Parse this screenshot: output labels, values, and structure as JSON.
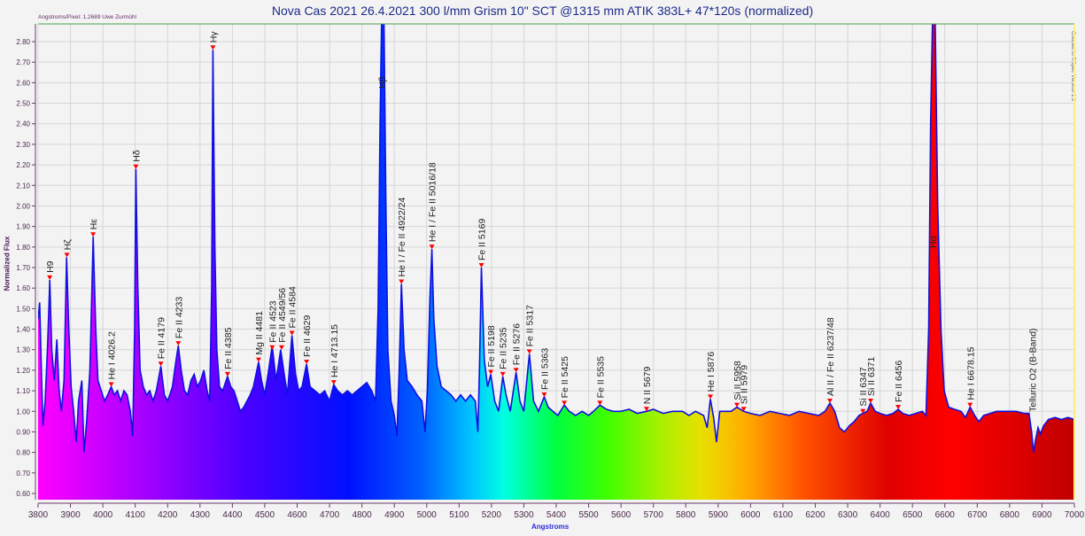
{
  "header": {
    "title": "Nova Cas 2021  26.4.2021  300 l/mm Grism  10\" SCT @1315 mm  ATIK 383L+   47*120s  (normalized)",
    "credit": "Angstroms/Pixel: 1.2689 Uwe Zurmühl",
    "side_note": "Created in RSpec Version 1.9"
  },
  "chart_data": {
    "type": "area",
    "title": "Nova Cas 2021  26.4.2021  300 l/mm Grism  10\" SCT @1315 mm  ATIK 383L+   47*120s  (normalized)",
    "xlabel": "Angstroms",
    "ylabel": "Normalized Flux",
    "xlim": [
      3800,
      7000
    ],
    "ylim": [
      0.58,
      2.88
    ],
    "grid": true,
    "x_ticks": [
      3800,
      3900,
      4000,
      4100,
      4200,
      4300,
      4400,
      4500,
      4600,
      4700,
      4800,
      4900,
      5000,
      5100,
      5200,
      5300,
      5400,
      5500,
      5600,
      5700,
      5800,
      5900,
      6000,
      6100,
      6200,
      6300,
      6400,
      6500,
      6600,
      6700,
      6800,
      6900,
      7000
    ],
    "y_ticks": [
      "0.60",
      "0.70",
      "0.80",
      "0.90",
      "1.00",
      "1.10",
      "1.20",
      "1.30",
      "1.40",
      "1.50",
      "1.60",
      "1.70",
      "1.80",
      "1.90",
      "2.00",
      "2.10",
      "2.20",
      "2.30",
      "2.40",
      "2.50",
      "2.60",
      "2.70",
      "2.80"
    ],
    "fill": "rainbow spectrum gradient (violet to red) under curve",
    "line_color": "#1010e0",
    "marker_color": "#ff0000",
    "spectrum": [
      [
        3800,
        1.45
      ],
      [
        3805,
        1.53
      ],
      [
        3810,
        1.2
      ],
      [
        3815,
        0.93
      ],
      [
        3822,
        1.05
      ],
      [
        3830,
        1.35
      ],
      [
        3836,
        1.64
      ],
      [
        3842,
        1.3
      ],
      [
        3850,
        1.15
      ],
      [
        3858,
        1.35
      ],
      [
        3865,
        1.1
      ],
      [
        3872,
        1.0
      ],
      [
        3880,
        1.15
      ],
      [
        3888,
        1.75
      ],
      [
        3895,
        1.4
      ],
      [
        3902,
        1.12
      ],
      [
        3910,
        1.0
      ],
      [
        3918,
        0.85
      ],
      [
        3925,
        1.05
      ],
      [
        3935,
        1.15
      ],
      [
        3942,
        0.8
      ],
      [
        3950,
        0.95
      ],
      [
        3960,
        1.2
      ],
      [
        3970,
        1.85
      ],
      [
        3978,
        1.4
      ],
      [
        3985,
        1.15
      ],
      [
        3995,
        1.1
      ],
      [
        4005,
        1.05
      ],
      [
        4015,
        1.08
      ],
      [
        4026,
        1.12
      ],
      [
        4035,
        1.08
      ],
      [
        4045,
        1.1
      ],
      [
        4055,
        1.05
      ],
      [
        4065,
        1.1
      ],
      [
        4075,
        1.08
      ],
      [
        4085,
        1.0
      ],
      [
        4092,
        0.88
      ],
      [
        4098,
        1.4
      ],
      [
        4102,
        2.18
      ],
      [
        4108,
        1.6
      ],
      [
        4115,
        1.2
      ],
      [
        4125,
        1.12
      ],
      [
        4135,
        1.08
      ],
      [
        4145,
        1.1
      ],
      [
        4155,
        1.05
      ],
      [
        4165,
        1.1
      ],
      [
        4179,
        1.22
      ],
      [
        4190,
        1.08
      ],
      [
        4200,
        1.05
      ],
      [
        4215,
        1.12
      ],
      [
        4226,
        1.25
      ],
      [
        4233,
        1.32
      ],
      [
        4242,
        1.2
      ],
      [
        4252,
        1.1
      ],
      [
        4262,
        1.08
      ],
      [
        4272,
        1.15
      ],
      [
        4282,
        1.18
      ],
      [
        4292,
        1.12
      ],
      [
        4302,
        1.15
      ],
      [
        4312,
        1.2
      ],
      [
        4322,
        1.1
      ],
      [
        4330,
        1.05
      ],
      [
        4336,
        1.6
      ],
      [
        4340,
        2.76
      ],
      [
        4346,
        1.8
      ],
      [
        4352,
        1.3
      ],
      [
        4360,
        1.12
      ],
      [
        4370,
        1.1
      ],
      [
        4385,
        1.17
      ],
      [
        4395,
        1.12
      ],
      [
        4405,
        1.1
      ],
      [
        4415,
        1.05
      ],
      [
        4425,
        1.0
      ],
      [
        4435,
        1.02
      ],
      [
        4445,
        1.05
      ],
      [
        4455,
        1.08
      ],
      [
        4465,
        1.12
      ],
      [
        4481,
        1.24
      ],
      [
        4490,
        1.15
      ],
      [
        4500,
        1.08
      ],
      [
        4512,
        1.2
      ],
      [
        4523,
        1.32
      ],
      [
        4535,
        1.15
      ],
      [
        4549,
        1.3
      ],
      [
        4560,
        1.18
      ],
      [
        4570,
        1.08
      ],
      [
        4584,
        1.37
      ],
      [
        4595,
        1.18
      ],
      [
        4605,
        1.1
      ],
      [
        4615,
        1.12
      ],
      [
        4629,
        1.23
      ],
      [
        4640,
        1.12
      ],
      [
        4655,
        1.1
      ],
      [
        4670,
        1.08
      ],
      [
        4685,
        1.1
      ],
      [
        4700,
        1.05
      ],
      [
        4713,
        1.13
      ],
      [
        4725,
        1.1
      ],
      [
        4740,
        1.08
      ],
      [
        4755,
        1.1
      ],
      [
        4770,
        1.08
      ],
      [
        4785,
        1.1
      ],
      [
        4800,
        1.12
      ],
      [
        4815,
        1.14
      ],
      [
        4830,
        1.1
      ],
      [
        4842,
        1.05
      ],
      [
        4850,
        1.5
      ],
      [
        4856,
        2.4
      ],
      [
        4861,
        2.95
      ],
      [
        4868,
        2.95
      ],
      [
        4874,
        2.0
      ],
      [
        4880,
        1.3
      ],
      [
        4890,
        1.05
      ],
      [
        4900,
        0.98
      ],
      [
        4908,
        0.88
      ],
      [
        4915,
        1.2
      ],
      [
        4922,
        1.62
      ],
      [
        4930,
        1.3
      ],
      [
        4940,
        1.15
      ],
      [
        4955,
        1.12
      ],
      [
        4970,
        1.08
      ],
      [
        4985,
        1.05
      ],
      [
        4995,
        0.9
      ],
      [
        5002,
        1.1
      ],
      [
        5010,
        1.55
      ],
      [
        5016,
        1.79
      ],
      [
        5022,
        1.45
      ],
      [
        5032,
        1.22
      ],
      [
        5045,
        1.12
      ],
      [
        5060,
        1.1
      ],
      [
        5075,
        1.08
      ],
      [
        5090,
        1.05
      ],
      [
        5105,
        1.08
      ],
      [
        5120,
        1.05
      ],
      [
        5135,
        1.08
      ],
      [
        5150,
        1.05
      ],
      [
        5158,
        0.9
      ],
      [
        5163,
        1.2
      ],
      [
        5169,
        1.7
      ],
      [
        5178,
        1.25
      ],
      [
        5188,
        1.12
      ],
      [
        5198,
        1.18
      ],
      [
        5210,
        1.05
      ],
      [
        5222,
        1.0
      ],
      [
        5235,
        1.17
      ],
      [
        5245,
        1.08
      ],
      [
        5258,
        1.0
      ],
      [
        5276,
        1.19
      ],
      [
        5288,
        1.05
      ],
      [
        5300,
        1.0
      ],
      [
        5317,
        1.28
      ],
      [
        5330,
        1.05
      ],
      [
        5345,
        1.0
      ],
      [
        5363,
        1.07
      ],
      [
        5375,
        1.02
      ],
      [
        5390,
        1.0
      ],
      [
        5405,
        0.98
      ],
      [
        5425,
        1.03
      ],
      [
        5440,
        1.0
      ],
      [
        5460,
        0.98
      ],
      [
        5480,
        1.0
      ],
      [
        5500,
        0.98
      ],
      [
        5515,
        1.0
      ],
      [
        5535,
        1.03
      ],
      [
        5555,
        1.01
      ],
      [
        5575,
        1.0
      ],
      [
        5600,
        1.0
      ],
      [
        5625,
        1.01
      ],
      [
        5650,
        0.99
      ],
      [
        5679,
        1.0
      ],
      [
        5700,
        1.01
      ],
      [
        5730,
        0.99
      ],
      [
        5760,
        1.0
      ],
      [
        5790,
        1.0
      ],
      [
        5810,
        0.98
      ],
      [
        5830,
        1.0
      ],
      [
        5855,
        0.98
      ],
      [
        5866,
        0.92
      ],
      [
        5876,
        1.06
      ],
      [
        5886,
        0.97
      ],
      [
        5895,
        0.85
      ],
      [
        5905,
        1.0
      ],
      [
        5920,
        1.0
      ],
      [
        5940,
        1.0
      ],
      [
        5958,
        1.02
      ],
      [
        5979,
        1.0
      ],
      [
        6000,
        0.99
      ],
      [
        6030,
        0.98
      ],
      [
        6060,
        1.0
      ],
      [
        6090,
        0.99
      ],
      [
        6120,
        0.98
      ],
      [
        6150,
        1.0
      ],
      [
        6180,
        0.99
      ],
      [
        6210,
        0.98
      ],
      [
        6230,
        1.0
      ],
      [
        6245,
        1.04
      ],
      [
        6260,
        1.0
      ],
      [
        6275,
        0.92
      ],
      [
        6290,
        0.9
      ],
      [
        6305,
        0.93
      ],
      [
        6320,
        0.95
      ],
      [
        6335,
        0.98
      ],
      [
        6347,
        0.99
      ],
      [
        6360,
        1.0
      ],
      [
        6371,
        1.04
      ],
      [
        6385,
        1.0
      ],
      [
        6400,
        0.99
      ],
      [
        6420,
        0.98
      ],
      [
        6440,
        0.99
      ],
      [
        6456,
        1.01
      ],
      [
        6470,
        0.99
      ],
      [
        6490,
        0.98
      ],
      [
        6510,
        0.99
      ],
      [
        6530,
        1.0
      ],
      [
        6542,
        0.98
      ],
      [
        6550,
        1.4
      ],
      [
        6556,
        2.4
      ],
      [
        6562,
        2.95
      ],
      [
        6570,
        2.95
      ],
      [
        6578,
        2.0
      ],
      [
        6588,
        1.4
      ],
      [
        6598,
        1.1
      ],
      [
        6612,
        1.02
      ],
      [
        6630,
        1.01
      ],
      [
        6650,
        1.0
      ],
      [
        6664,
        0.97
      ],
      [
        6678,
        1.02
      ],
      [
        6692,
        0.98
      ],
      [
        6705,
        0.95
      ],
      [
        6720,
        0.98
      ],
      [
        6740,
        0.99
      ],
      [
        6760,
        1.0
      ],
      [
        6790,
        1.0
      ],
      [
        6820,
        1.0
      ],
      [
        6845,
        0.99
      ],
      [
        6860,
        0.99
      ],
      [
        6868,
        0.9
      ],
      [
        6874,
        0.8
      ],
      [
        6880,
        0.86
      ],
      [
        6888,
        0.92
      ],
      [
        6895,
        0.89
      ],
      [
        6905,
        0.93
      ],
      [
        6920,
        0.96
      ],
      [
        6940,
        0.97
      ],
      [
        6960,
        0.96
      ],
      [
        6980,
        0.97
      ],
      [
        7000,
        0.96
      ]
    ],
    "annotations": [
      {
        "label": "H9",
        "x": 3836,
        "y": 1.64,
        "marker": true
      },
      {
        "label": "Hζ",
        "x": 3889,
        "y": 1.75,
        "marker": true
      },
      {
        "label": "Hε",
        "x": 3970,
        "y": 1.85,
        "marker": true
      },
      {
        "label": "He I 4026.2",
        "x": 4026,
        "y": 1.12,
        "marker": true
      },
      {
        "label": "Hδ",
        "x": 4102,
        "y": 2.18,
        "marker": true
      },
      {
        "label": "Fe II 4179",
        "x": 4179,
        "y": 1.22,
        "marker": true
      },
      {
        "label": "Fe II  4233",
        "x": 4233,
        "y": 1.32,
        "marker": true
      },
      {
        "label": "Hγ",
        "x": 4340,
        "y": 2.76,
        "marker": true
      },
      {
        "label": "Fe II  4385",
        "x": 4385,
        "y": 1.17,
        "marker": true
      },
      {
        "label": "Mg II  4481",
        "x": 4481,
        "y": 1.24,
        "marker": true
      },
      {
        "label": "Fe II 4523",
        "x": 4523,
        "y": 1.3,
        "marker": true
      },
      {
        "label": "Fe II 4549/56",
        "x": 4552,
        "y": 1.3,
        "marker": true
      },
      {
        "label": "Fe II  4584",
        "x": 4584,
        "y": 1.37,
        "marker": true
      },
      {
        "label": "Fe II  4629",
        "x": 4629,
        "y": 1.23,
        "marker": true
      },
      {
        "label": "He I 4713.15",
        "x": 4713,
        "y": 1.13,
        "marker": true
      },
      {
        "label": "Hβ",
        "x": 4861,
        "y": null,
        "marker": false
      },
      {
        "label": "He I / Fe II 4922/24",
        "x": 4922,
        "y": 1.62,
        "marker": true
      },
      {
        "label": "He I / Fe II  5016/18",
        "x": 5016,
        "y": 1.79,
        "marker": true
      },
      {
        "label": "Fe II  5169",
        "x": 5169,
        "y": 1.7,
        "marker": true
      },
      {
        "label": "Fe II  5198",
        "x": 5198,
        "y": 1.18,
        "marker": true
      },
      {
        "label": "Fe II  5235",
        "x": 5235,
        "y": 1.17,
        "marker": true
      },
      {
        "label": "Fe II  5276",
        "x": 5276,
        "y": 1.19,
        "marker": true
      },
      {
        "label": "Fe II  5317",
        "x": 5317,
        "y": 1.28,
        "marker": true
      },
      {
        "label": "Fe II  5363",
        "x": 5363,
        "y": 1.07,
        "marker": true
      },
      {
        "label": "Fe II  5425",
        "x": 5425,
        "y": 1.03,
        "marker": true
      },
      {
        "label": "Fe II  5535",
        "x": 5535,
        "y": 1.03,
        "marker": true
      },
      {
        "label": "N II 5679",
        "x": 5679,
        "y": 1.0,
        "marker": true
      },
      {
        "label": "He I 5876",
        "x": 5876,
        "y": 1.06,
        "marker": true
      },
      {
        "label": "Si II  5958",
        "x": 5958,
        "y": 1.02,
        "marker": true
      },
      {
        "label": "Si II  5979",
        "x": 5979,
        "y": 1.0,
        "marker": true
      },
      {
        "label": "Al II / Fe II  6237/48",
        "x": 6245,
        "y": 1.04,
        "marker": true
      },
      {
        "label": "Si II  6347",
        "x": 6347,
        "y": 0.99,
        "marker": true
      },
      {
        "label": "Si II  6371",
        "x": 6371,
        "y": 1.04,
        "marker": true
      },
      {
        "label": "Fe II  6456",
        "x": 6456,
        "y": 1.01,
        "marker": true
      },
      {
        "label": "Hα",
        "x": 6563,
        "y": null,
        "marker": false
      },
      {
        "label": "He I 6678.15",
        "x": 6678,
        "y": 1.02,
        "marker": true
      },
      {
        "label": "Telluric O2 (B-Band)",
        "x": 6870,
        "y": null,
        "marker": false
      }
    ]
  }
}
